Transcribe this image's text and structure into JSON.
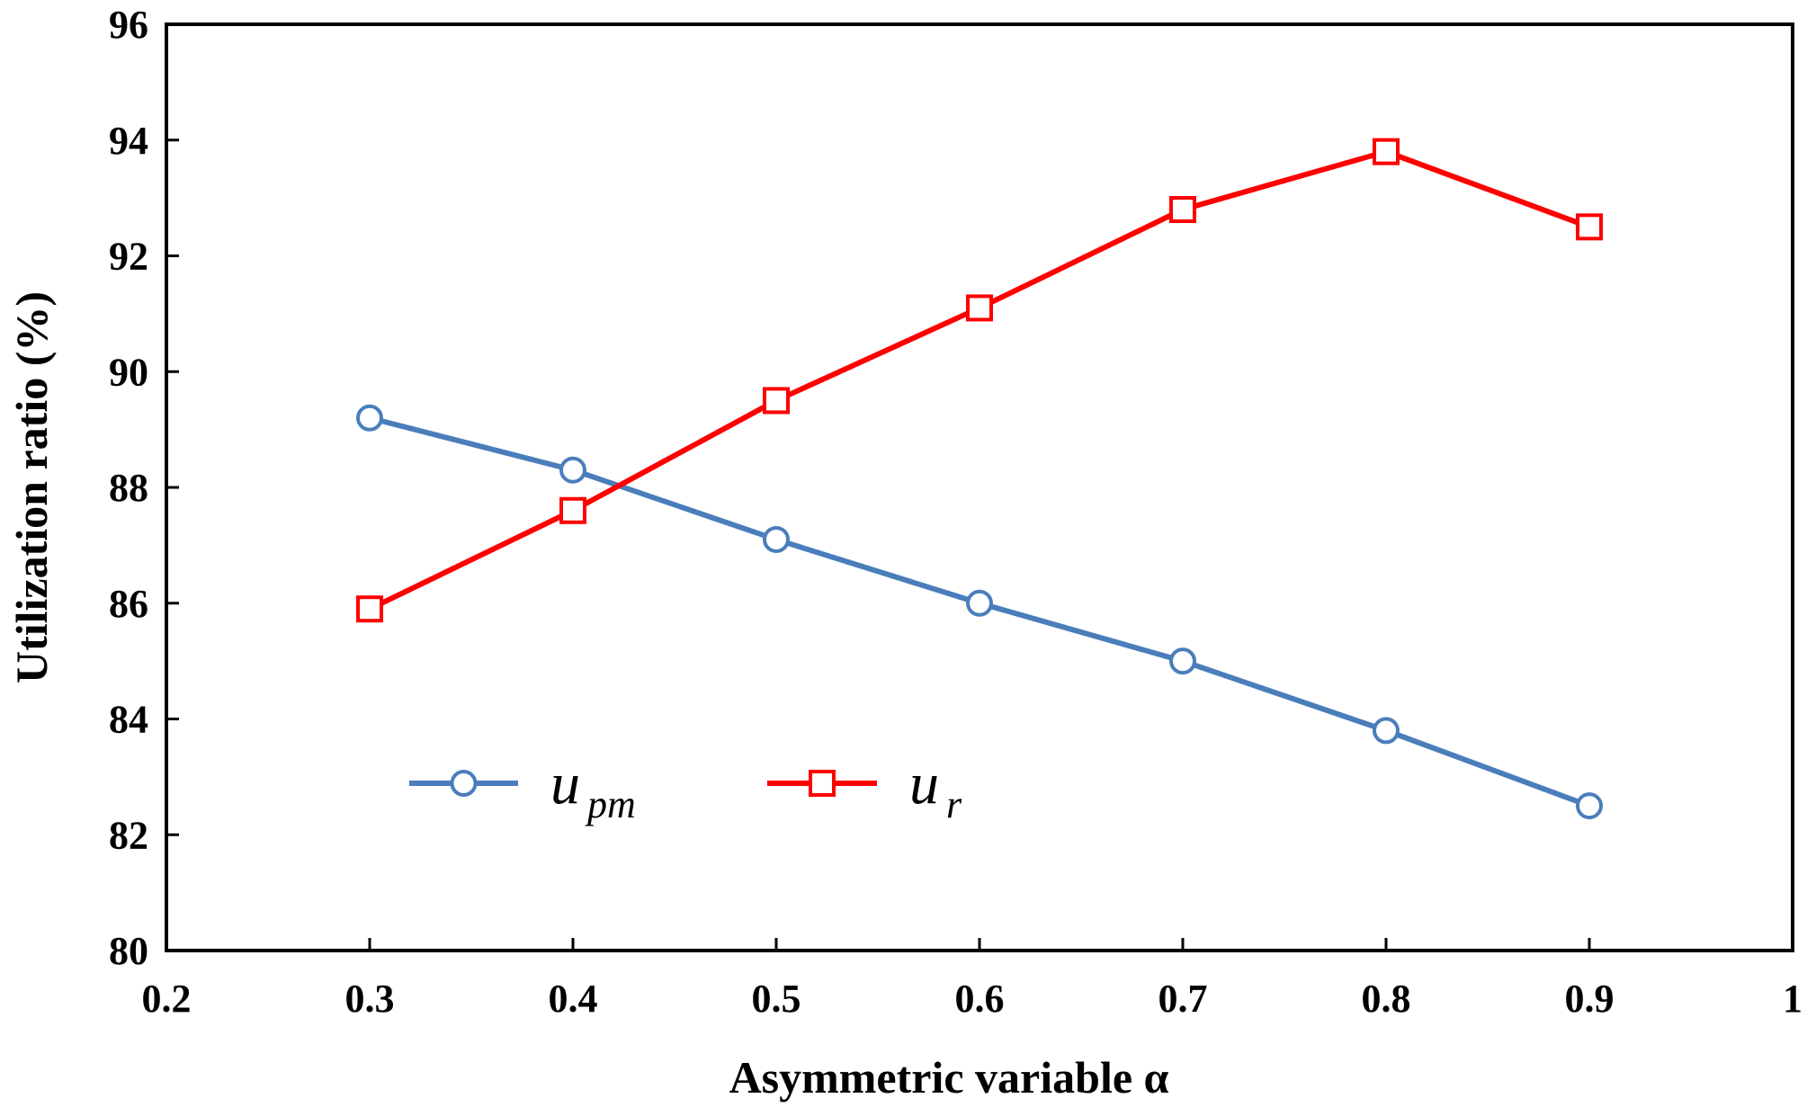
{
  "chart_data": {
    "type": "line",
    "title": "",
    "xlabel": "Asymmetric variable α",
    "ylabel": "Utilization ratio (%)",
    "xlim": [
      0.2,
      1.0
    ],
    "ylim": [
      80,
      96
    ],
    "xticks": [
      0.2,
      0.3,
      0.4,
      0.5,
      0.6,
      0.7,
      0.8,
      0.9,
      1.0
    ],
    "xtick_labels": [
      "0.2",
      "0.3",
      "0.4",
      "0.5",
      "0.6",
      "0.7",
      "0.8",
      "0.9",
      "1"
    ],
    "yticks": [
      80,
      82,
      84,
      86,
      88,
      90,
      92,
      94,
      96
    ],
    "ytick_labels": [
      "80",
      "82",
      "84",
      "86",
      "88",
      "90",
      "92",
      "94",
      "96"
    ],
    "grid": false,
    "legend_position": "bottom-left",
    "series": [
      {
        "name": "u_pm",
        "legend_main": "u",
        "legend_sub": "pm",
        "marker": "circle",
        "color": "#4A7EBB",
        "x": [
          0.3,
          0.4,
          0.5,
          0.6,
          0.7,
          0.8,
          0.9
        ],
        "y": [
          89.2,
          88.3,
          87.1,
          86.0,
          85.0,
          83.8,
          82.5
        ]
      },
      {
        "name": "u_r",
        "legend_main": "u",
        "legend_sub": "r",
        "marker": "square",
        "color": "#FF0000",
        "x": [
          0.3,
          0.4,
          0.5,
          0.6,
          0.7,
          0.8,
          0.9
        ],
        "y": [
          85.9,
          87.6,
          89.5,
          91.1,
          92.8,
          93.8,
          92.5
        ]
      }
    ]
  }
}
